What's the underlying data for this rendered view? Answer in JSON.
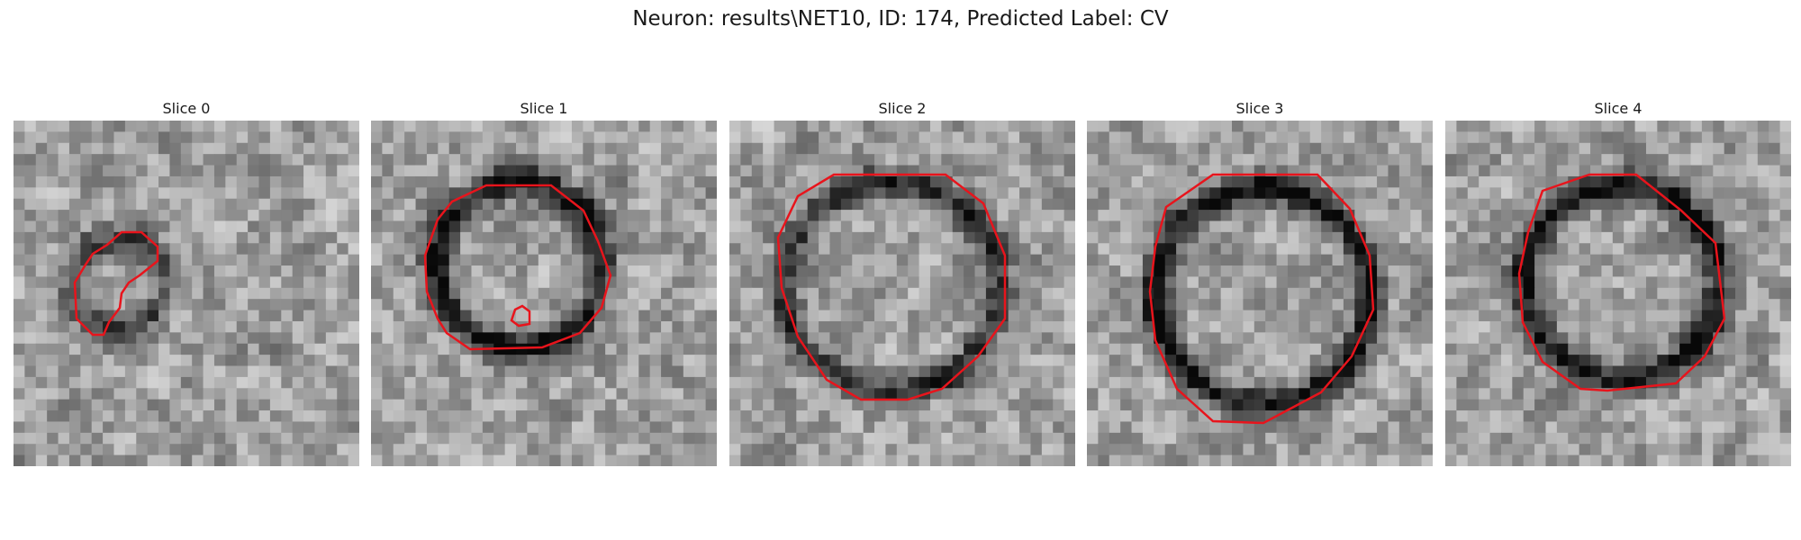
{
  "figure": {
    "title": "Neuron: results\\NET10, ID: 174, Predicted Label: CV"
  },
  "panels": [
    {
      "title": "Slice 0"
    },
    {
      "title": "Slice 1"
    },
    {
      "title": "Slice 2"
    },
    {
      "title": "Slice 3"
    },
    {
      "title": "Slice 4"
    }
  ],
  "colors": {
    "contour": "#e8141c",
    "background": "#ffffff"
  }
}
